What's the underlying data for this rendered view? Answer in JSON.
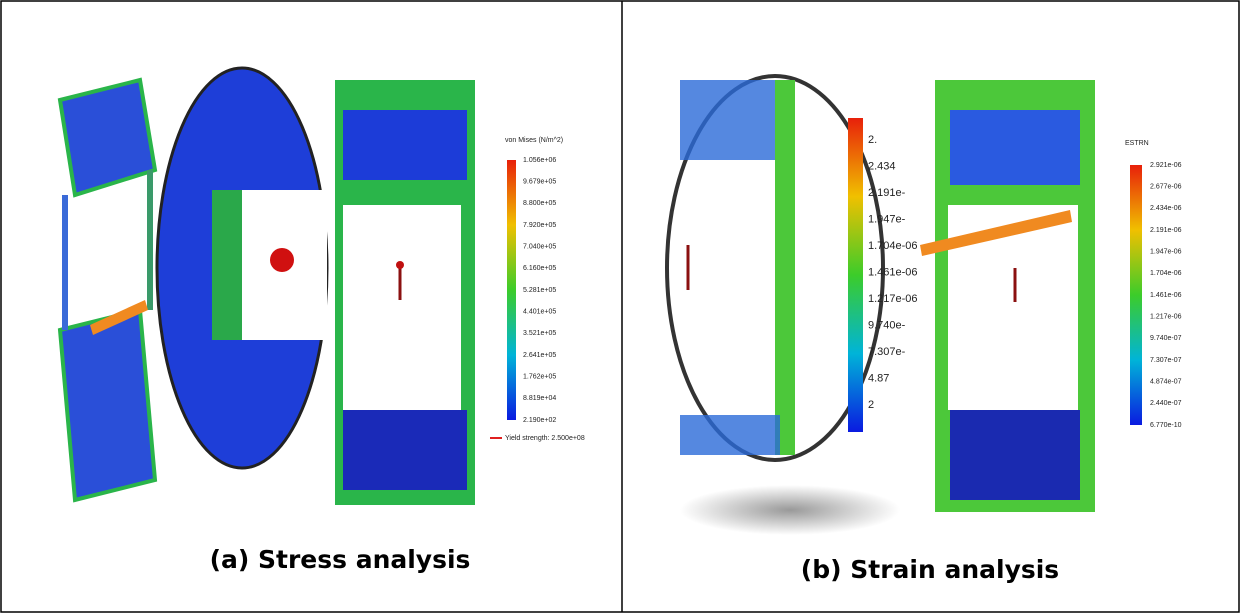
{
  "panels": [
    {
      "caption": "(a)  Stress analysis",
      "legend": {
        "title": "von Mises (N/m^2)",
        "labels": [
          "1.056e+06",
          "9.679e+05",
          "8.800e+05",
          "7.920e+05",
          "7.040e+05",
          "6.160e+05",
          "5.281e+05",
          "4.401e+05",
          "3.521e+05",
          "2.641e+05",
          "1.762e+05",
          "8.819e+04",
          "2.190e+02"
        ],
        "note": "Yield strength: 2.500e+08"
      }
    },
    {
      "caption": "(b) Strain analysis",
      "legend": {
        "title": "ESTRN",
        "labels": [
          "2.921e-06",
          "2.677e-06",
          "2.434e-06",
          "2.191e-06",
          "1.947e-06",
          "1.704e-06",
          "1.461e-06",
          "1.217e-06",
          "9.740e-07",
          "7.307e-07",
          "4.874e-07",
          "2.440e-07",
          "6.770e-10"
        ]
      },
      "zoom_labels": [
        "2.",
        "2.434",
        "2.191e-",
        "1.947e-",
        "1.704e-06",
        "1.461e-06",
        "1.217e-06",
        "9.740e-",
        "7.307e-",
        "4.87",
        "2"
      ]
    }
  ]
}
